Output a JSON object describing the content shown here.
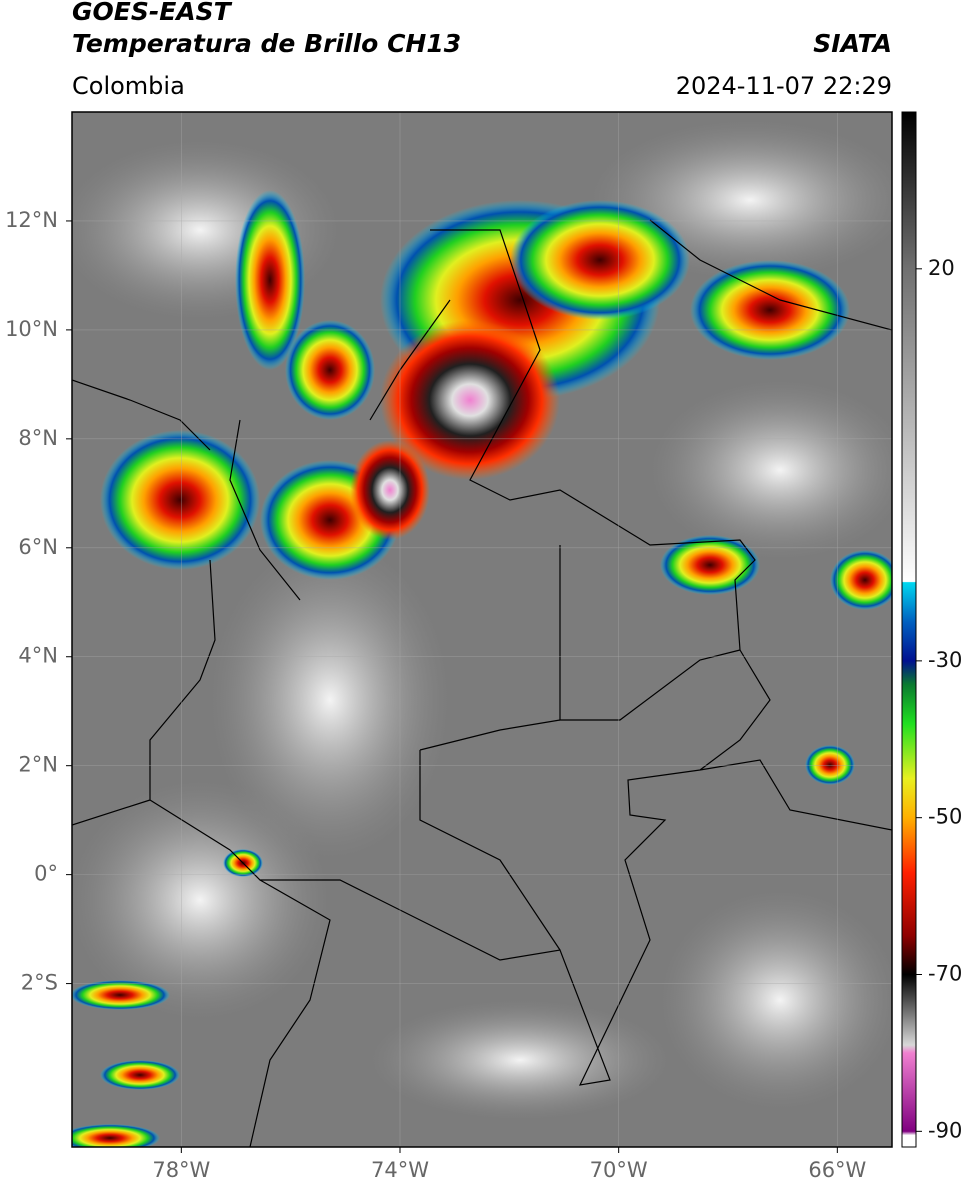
{
  "header": {
    "title": "GOES-EAST",
    "subtitle": "Temperatura de Brillo CH13",
    "source": "SIATA",
    "region": "Colombia",
    "datetime": "2024-11-07 22:29"
  },
  "map": {
    "xlim": [
      -80,
      -65
    ],
    "ylim": [
      -5,
      14
    ],
    "xticks": [
      {
        "value": -78,
        "label": "78°W"
      },
      {
        "value": -74,
        "label": "74°W"
      },
      {
        "value": -70,
        "label": "70°W"
      },
      {
        "value": -66,
        "label": "66°W"
      }
    ],
    "yticks": [
      {
        "value": 12,
        "label": "12°N"
      },
      {
        "value": 10,
        "label": "10°N"
      },
      {
        "value": 8,
        "label": "8°N"
      },
      {
        "value": 6,
        "label": "6°N"
      },
      {
        "value": 4,
        "label": "4°N"
      },
      {
        "value": 2,
        "label": "2°N"
      },
      {
        "value": 0,
        "label": "0°"
      },
      {
        "value": -2,
        "label": "2°S"
      }
    ],
    "grid": true
  },
  "colorbar": {
    "clim": [
      -92,
      40
    ],
    "ticks": [
      20,
      -30,
      -50,
      -70,
      -90
    ],
    "colormap": [
      {
        "value": 40,
        "color": "#000000"
      },
      {
        "value": 20,
        "color": "#707070"
      },
      {
        "value": -19.9,
        "color": "#ffffff"
      },
      {
        "value": -20,
        "color": "#00d8f0"
      },
      {
        "value": -25,
        "color": "#0060c0"
      },
      {
        "value": -30,
        "color": "#001090"
      },
      {
        "value": -33,
        "color": "#0a7a30"
      },
      {
        "value": -38,
        "color": "#20e020"
      },
      {
        "value": -45,
        "color": "#e8f020"
      },
      {
        "value": -50,
        "color": "#ffb000"
      },
      {
        "value": -57,
        "color": "#ff2000"
      },
      {
        "value": -65,
        "color": "#900000"
      },
      {
        "value": -70,
        "color": "#000000"
      },
      {
        "value": -79,
        "color": "#d8d8d8"
      },
      {
        "value": -80,
        "color": "#f080d0"
      },
      {
        "value": -90,
        "color": "#800080"
      },
      {
        "value": -90.5,
        "color": "#ffffff"
      },
      {
        "value": -92,
        "color": "#ffffff"
      }
    ]
  }
}
